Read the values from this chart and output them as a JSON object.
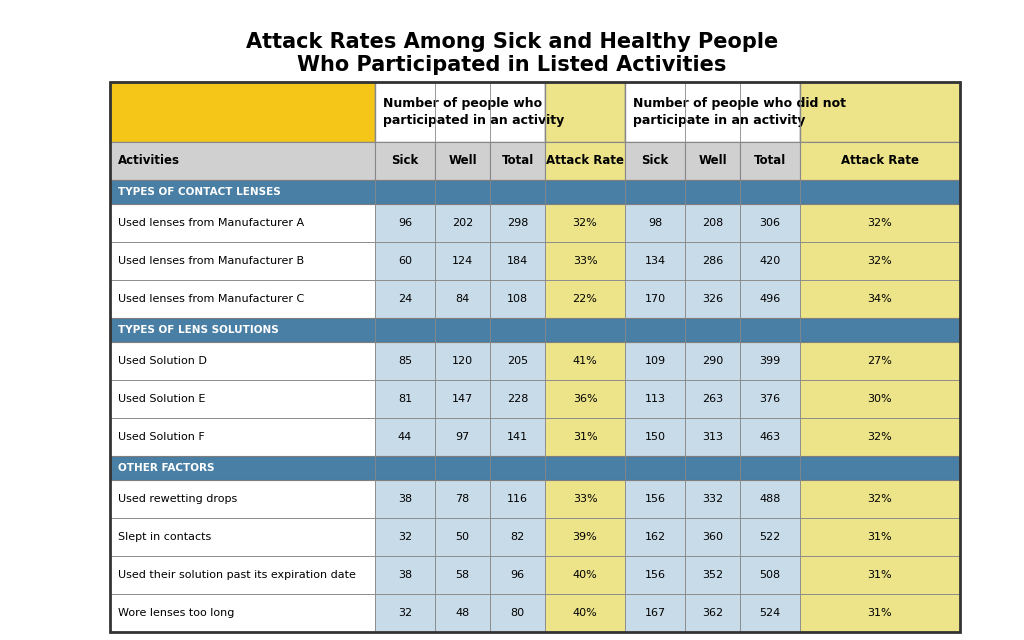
{
  "title_line1": "Attack Rates Among Sick and Healthy People",
  "title_line2": "Who Participated in Listed Activities",
  "title_fontsize": 15,
  "col_header_row2": [
    "Activities",
    "Sick",
    "Well",
    "Total",
    "Attack Rate",
    "Sick",
    "Well",
    "Total",
    "Attack Rate"
  ],
  "section_labels": [
    "TYPES OF CONTACT LENSES",
    "TYPES OF LENS SOLUTIONS",
    "OTHER FACTORS"
  ],
  "rows": [
    [
      "Used lenses from Manufacturer A",
      "96",
      "202",
      "298",
      "32%",
      "98",
      "208",
      "306",
      "32%"
    ],
    [
      "Used lenses from Manufacturer B",
      "60",
      "124",
      "184",
      "33%",
      "134",
      "286",
      "420",
      "32%"
    ],
    [
      "Used lenses from Manufacturer C",
      "24",
      "84",
      "108",
      "22%",
      "170",
      "326",
      "496",
      "34%"
    ],
    [
      "Used Solution D",
      "85",
      "120",
      "205",
      "41%",
      "109",
      "290",
      "399",
      "27%"
    ],
    [
      "Used Solution E",
      "81",
      "147",
      "228",
      "36%",
      "113",
      "263",
      "376",
      "30%"
    ],
    [
      "Used Solution F",
      "44",
      "97",
      "141",
      "31%",
      "150",
      "313",
      "463",
      "32%"
    ],
    [
      "Used rewetting drops",
      "38",
      "78",
      "116",
      "33%",
      "156",
      "332",
      "488",
      "32%"
    ],
    [
      "Slept in contacts",
      "32",
      "50",
      "82",
      "39%",
      "162",
      "360",
      "522",
      "31%"
    ],
    [
      "Used their solution past its expiration date",
      "38",
      "58",
      "96",
      "40%",
      "156",
      "352",
      "508",
      "31%"
    ],
    [
      "Wore lenses too long",
      "32",
      "48",
      "80",
      "40%",
      "167",
      "362",
      "524",
      "31%"
    ]
  ],
  "colors": {
    "gold_header": "#F5C518",
    "teal_section": "#4A7FA5",
    "light_blue_cell": "#C8DBE8",
    "gold_attack": "#EDE48A",
    "white_row": "#FFFFFF",
    "light_gray_header": "#D0D0D0",
    "header_text_bg": "#FFFFFF",
    "border_dark": "#555555",
    "border_light": "#AAAAAA"
  },
  "background_color": "#FFFFFF"
}
